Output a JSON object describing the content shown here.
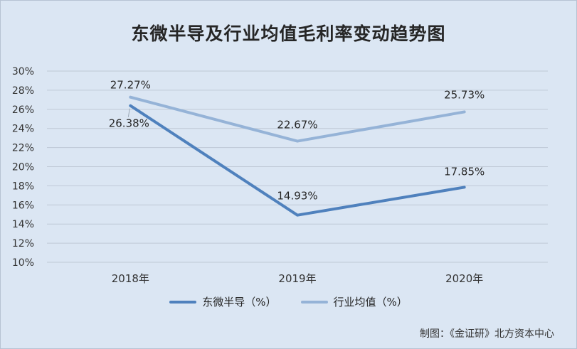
{
  "chart_data": {
    "type": "line",
    "title": "东微半导及行业均值毛利率变动趋势图",
    "categories": [
      "2018年",
      "2019年",
      "2020年"
    ],
    "yticks": [
      "10%",
      "12%",
      "14%",
      "16%",
      "18%",
      "20%",
      "22%",
      "24%",
      "26%",
      "28%",
      "30%"
    ],
    "ylim": [
      10,
      30
    ],
    "grid": true,
    "legend_position": "bottom",
    "series": [
      {
        "name": "东微半导（%）",
        "values": [
          26.38,
          14.93,
          17.85
        ],
        "labels": [
          "26.38%",
          "14.93%",
          "17.85%"
        ],
        "color": "#4f81bd"
      },
      {
        "name": "行业均值（%）",
        "values": [
          27.27,
          22.67,
          25.73
        ],
        "labels": [
          "27.27%",
          "22.67%",
          "25.73%"
        ],
        "color": "#95b3d7"
      }
    ]
  },
  "credit": "制图：《金证研》北方资本中心"
}
